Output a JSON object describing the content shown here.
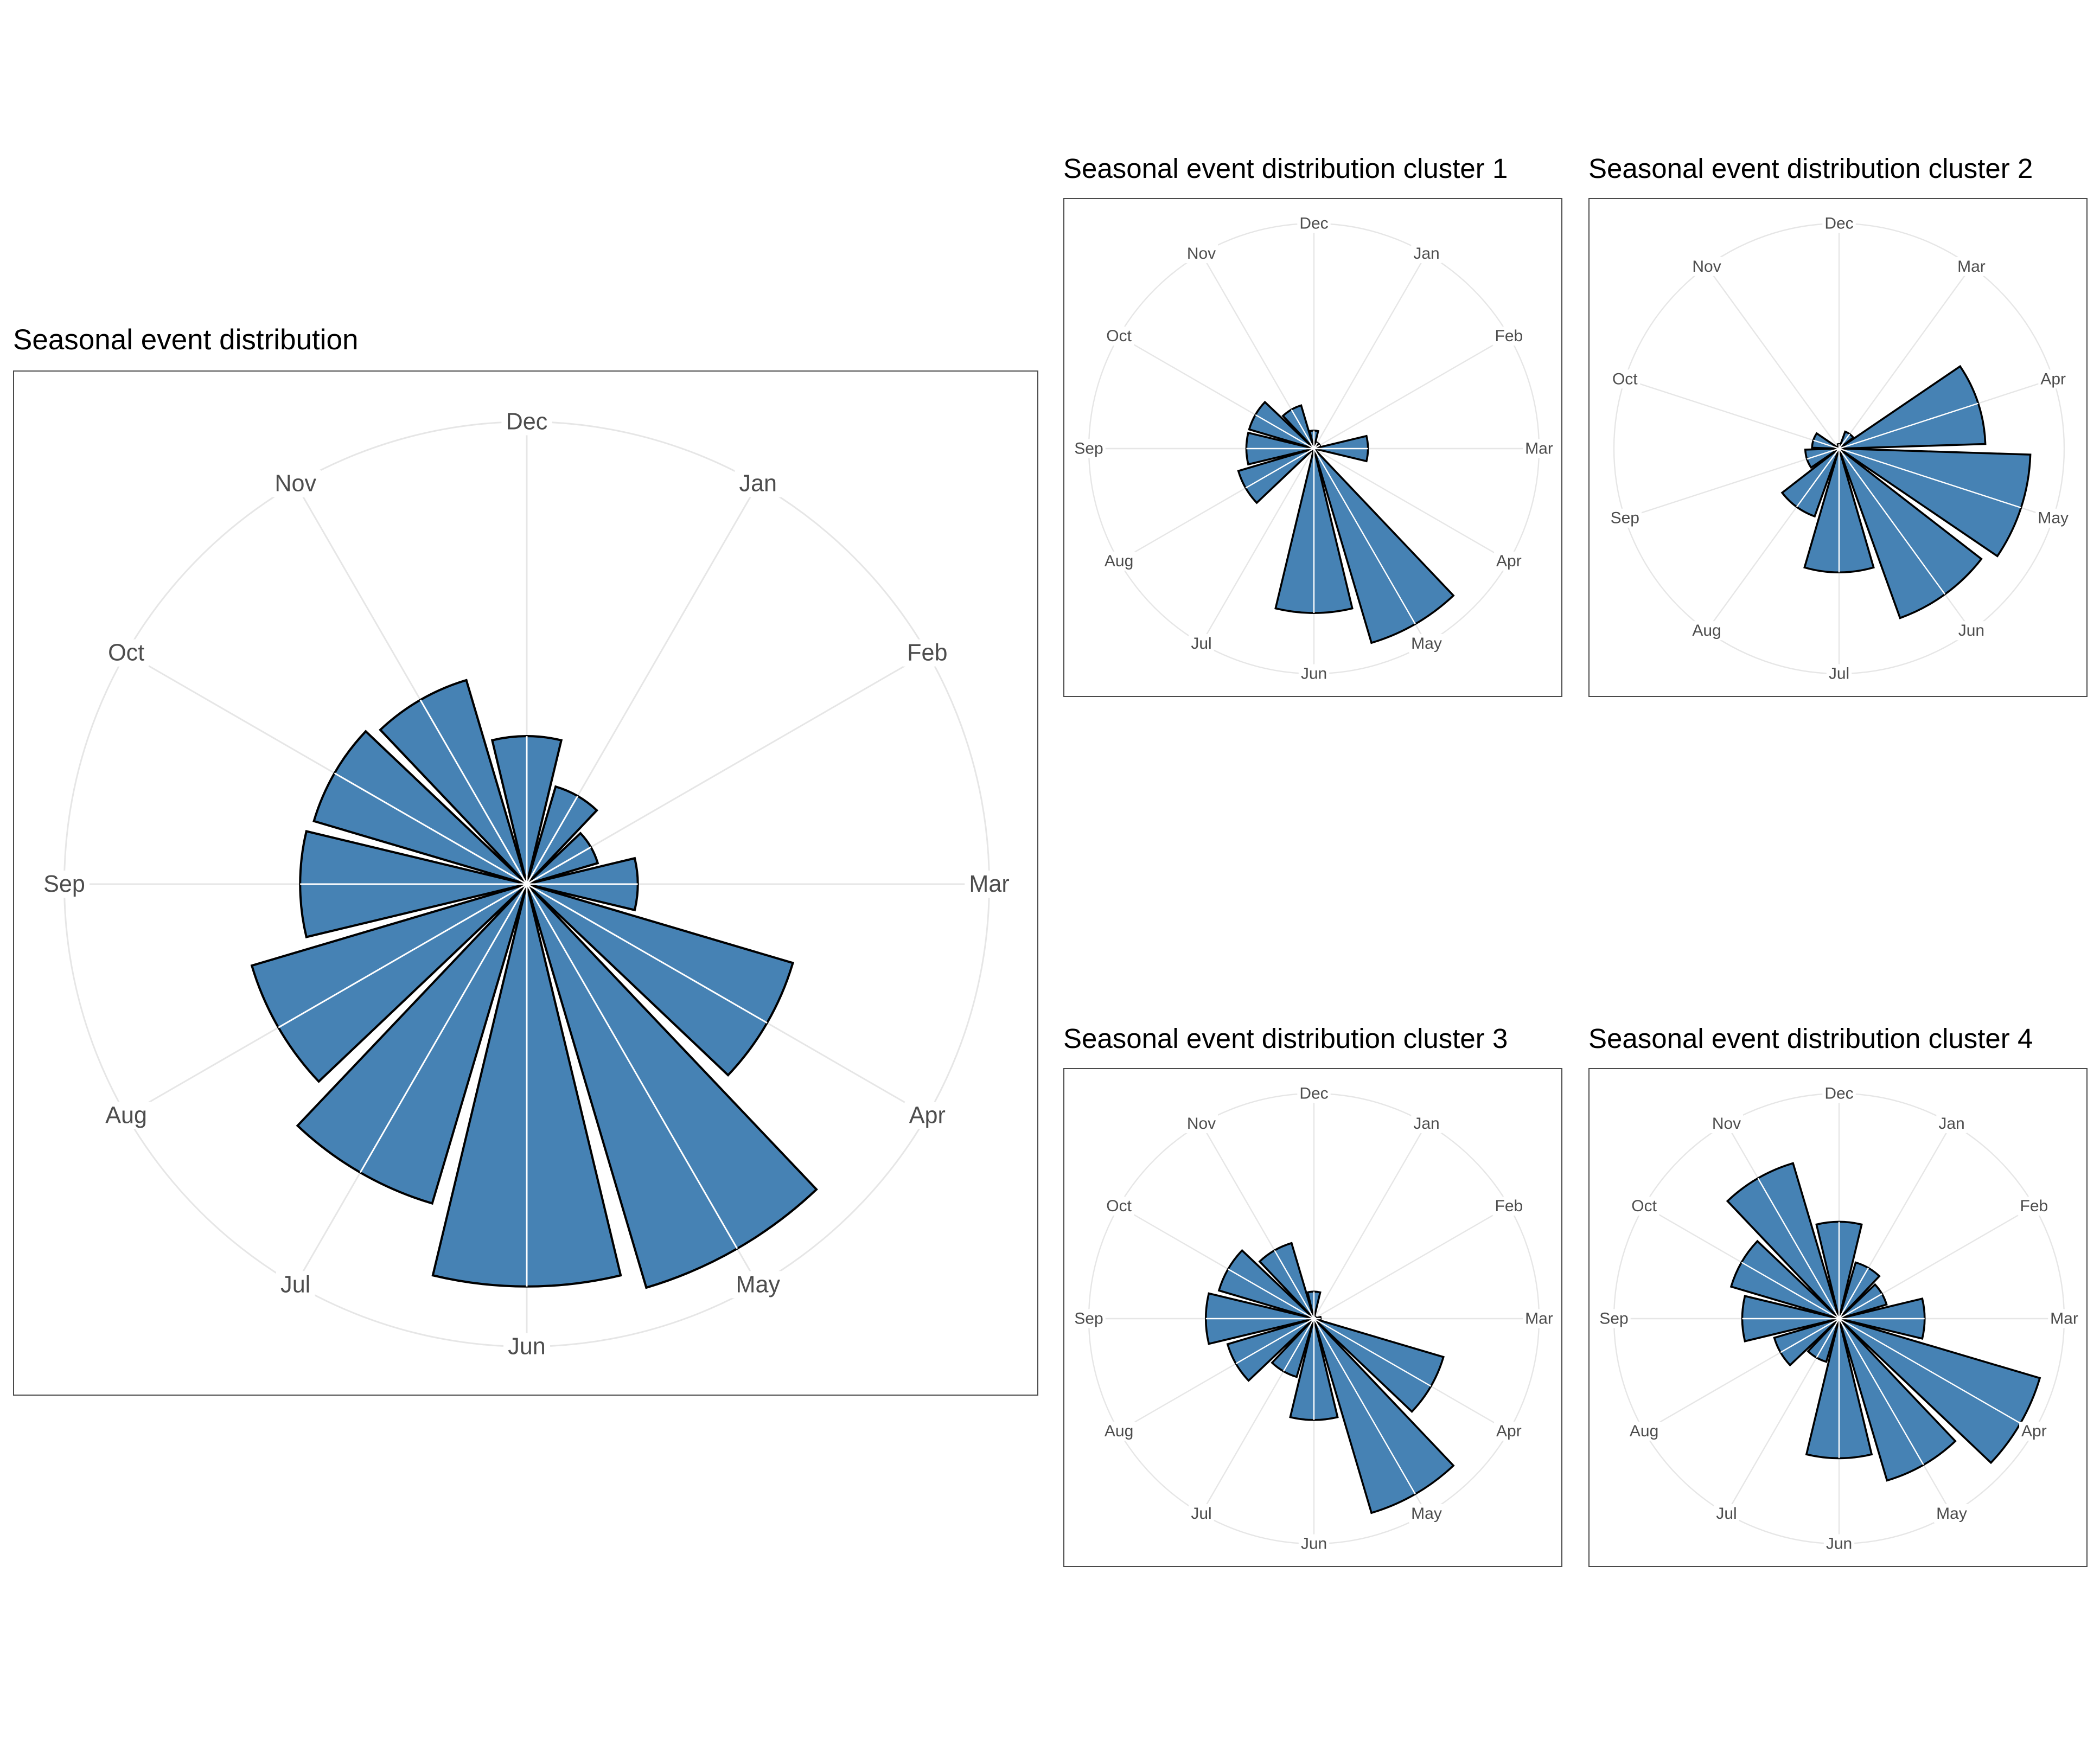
{
  "colors": {
    "bar_fill": "#4682B4",
    "bar_stroke": "#000000",
    "grid": "#E6E6E6",
    "tick_text": "#4D4D4D"
  },
  "chart_data": [
    {
      "id": "main",
      "type": "bar",
      "coord": "polar",
      "title": "Seasonal event distribution",
      "xlabel": "",
      "ylabel": "",
      "ylim": [
        0,
        100
      ],
      "grid": true,
      "legend": "none",
      "series": [
        {
          "categories": [
            "Dec",
            "Jan",
            "Feb",
            "Mar",
            "Apr",
            "May",
            "Jun",
            "Jul",
            "Aug",
            "Sep",
            "Oct",
            "Nov"
          ],
          "values": [
            32,
            22,
            16,
            24,
            60,
            91,
            87,
            72,
            62,
            49,
            48,
            46
          ]
        }
      ]
    },
    {
      "id": "c1",
      "type": "bar",
      "coord": "polar",
      "title": "Seasonal event distribution cluster 1",
      "xlabel": "",
      "ylabel": "",
      "ylim": [
        0,
        100
      ],
      "grid": true,
      "legend": "none",
      "series": [
        {
          "categories": [
            "Dec",
            "Jan",
            "Feb",
            "Mar",
            "Apr",
            "May",
            "Jun",
            "Jul",
            "Aug",
            "Sep",
            "Oct",
            "Nov"
          ],
          "values": [
            8,
            3,
            3,
            24,
            0,
            90,
            73,
            0,
            35,
            30,
            30,
            20
          ]
        }
      ]
    },
    {
      "id": "c2",
      "type": "bar",
      "coord": "polar",
      "title": "Seasonal event distribution cluster 2",
      "xlabel": "",
      "ylabel": "",
      "ylim": [
        0,
        100
      ],
      "grid": true,
      "legend": "none",
      "series": [
        {
          "categories": [
            "Dec",
            "Mar",
            "Apr",
            "May",
            "Jun",
            "Jul",
            "Aug",
            "Sep",
            "Oct",
            "Nov"
          ],
          "values": [
            2,
            8,
            65,
            85,
            80,
            55,
            32,
            15,
            12,
            0
          ]
        }
      ]
    },
    {
      "id": "c3",
      "type": "bar",
      "coord": "polar",
      "title": "Seasonal event distribution cluster 3",
      "xlabel": "",
      "ylabel": "",
      "ylim": [
        0,
        100
      ],
      "grid": true,
      "legend": "none",
      "series": [
        {
          "categories": [
            "Dec",
            "Jan",
            "Feb",
            "Mar",
            "Apr",
            "May",
            "Jun",
            "Jul",
            "Aug",
            "Sep",
            "Oct",
            "Nov"
          ],
          "values": [
            12,
            1,
            1,
            3,
            60,
            90,
            45,
            27,
            40,
            48,
            44,
            35
          ]
        }
      ]
    },
    {
      "id": "c4",
      "type": "bar",
      "coord": "polar",
      "title": "Seasonal event distribution cluster 4",
      "xlabel": "",
      "ylabel": "",
      "ylim": [
        0,
        100
      ],
      "grid": true,
      "legend": "none",
      "series": [
        {
          "categories": [
            "Dec",
            "Jan",
            "Feb",
            "Mar",
            "Apr",
            "May",
            "Jun",
            "Jul",
            "Aug",
            "Sep",
            "Oct",
            "Nov"
          ],
          "values": [
            43,
            26,
            22,
            38,
            93,
            75,
            62,
            20,
            30,
            43,
            50,
            72
          ]
        }
      ]
    }
  ]
}
